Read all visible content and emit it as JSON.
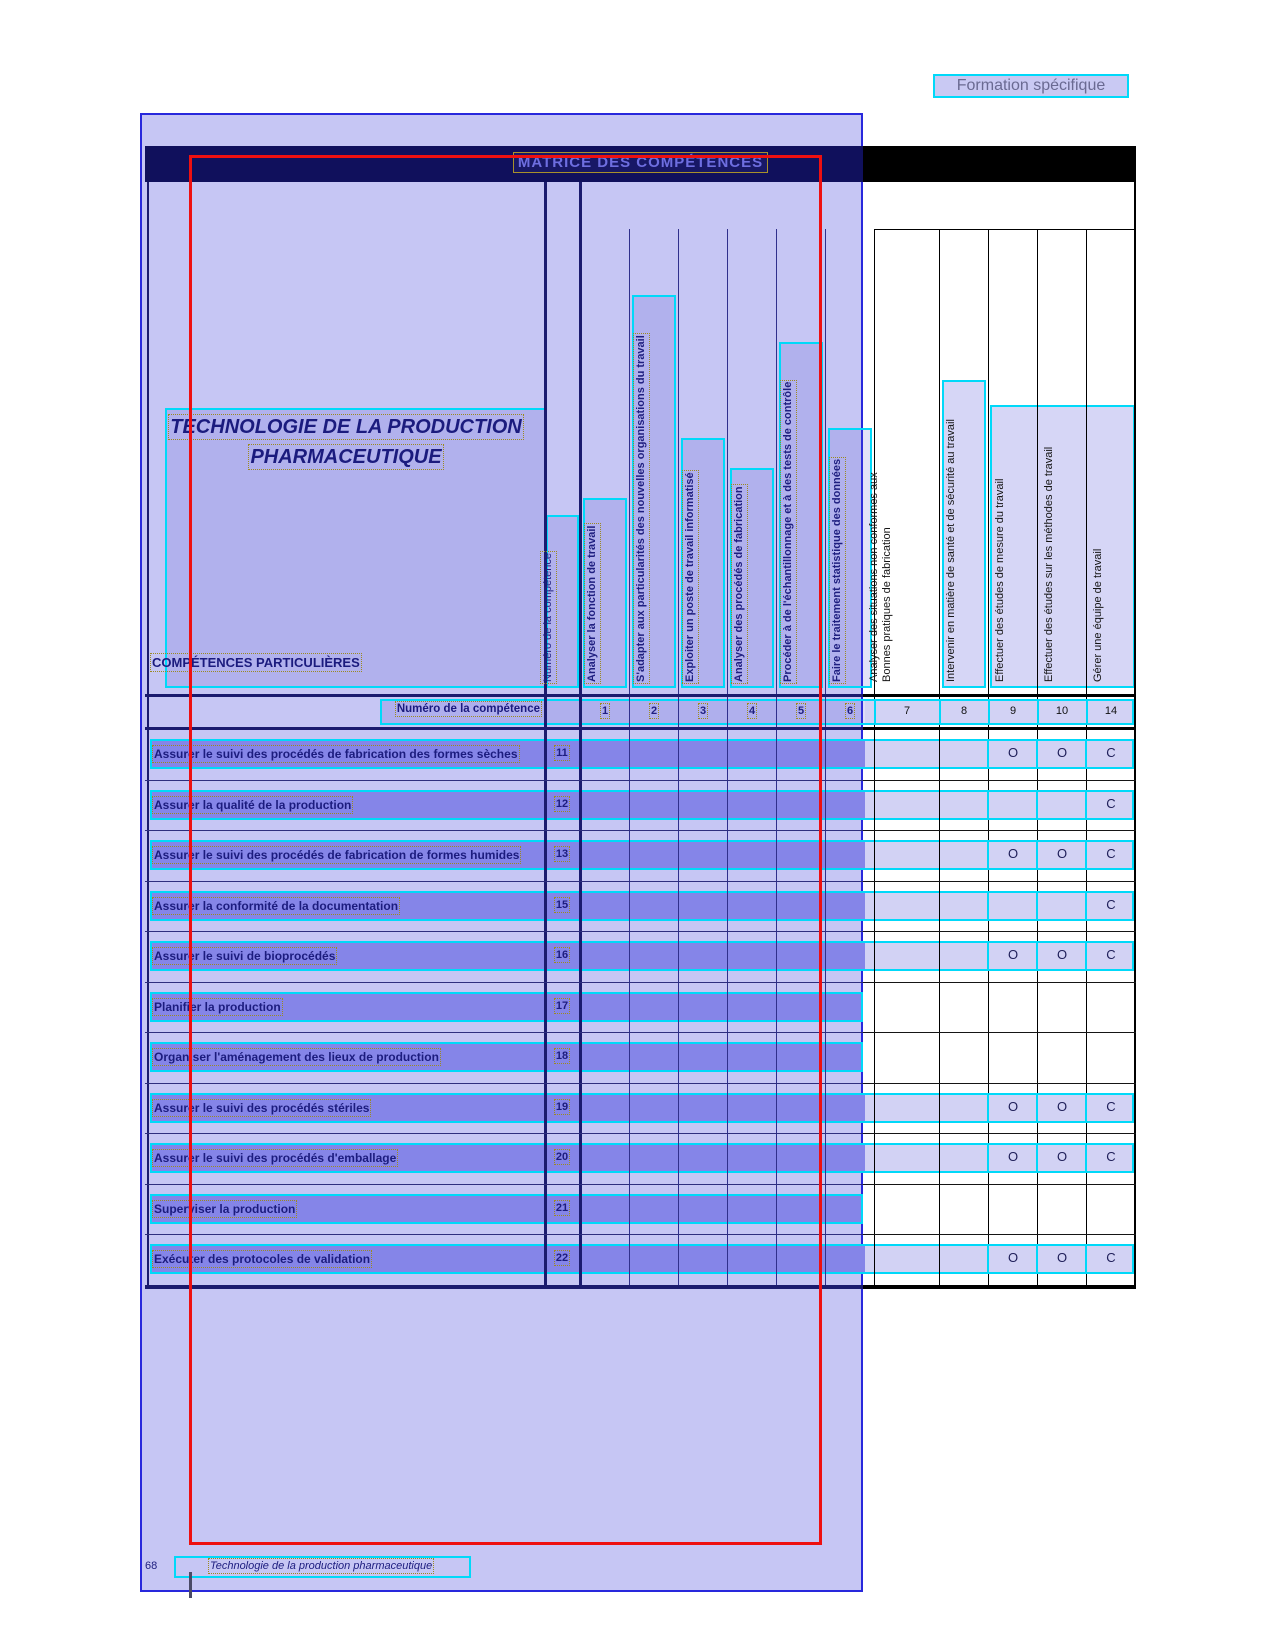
{
  "page": {
    "corner_label": "Formation spécifique",
    "matrix_title": "MATRICE DES COMPÉTENCES",
    "program_title_line1": "TECHNOLOGIE DE LA PRODUCTION",
    "program_title_line2": "PHARMACEUTIQUE",
    "left_column_header": "COMPÉTENCES PARTICULIÈRES",
    "number_row_label": "Numéro de la compétence"
  },
  "columns": [
    {
      "num": "1",
      "label": "Analyser la fonction de travail"
    },
    {
      "num": "2",
      "label": "S'adapter aux particularités des nouvelles organisations du travail"
    },
    {
      "num": "3",
      "label": "Exploiter un poste de travail informatisé"
    },
    {
      "num": "4",
      "label": "Analyser des procédés de fabrication"
    },
    {
      "num": "5",
      "label": "Procéder à de l'échantillonnage et à des tests de contrôle"
    },
    {
      "num": "6",
      "label": "Faire le traitement statistique des données"
    },
    {
      "num": "7",
      "label": "Analyser des situations non conformes aux\nBonnes pratiques de fabrication"
    },
    {
      "num": "8",
      "label": "Intervenir en matière de santé et de sécurité au travail"
    },
    {
      "num": "9",
      "label": "Effectuer des études de mesure du travail"
    },
    {
      "num": "10",
      "label": "Effectuer des études sur les méthodes de travail"
    },
    {
      "num": "14",
      "label": "Gérer une équipe de travail"
    }
  ],
  "rows": [
    {
      "num": "11",
      "label": "Assurer le suivi des procédés de fabrication des formes sèches",
      "highlight": "full",
      "marks": {
        "9": "O",
        "10": "O",
        "14": "C"
      }
    },
    {
      "num": "12",
      "label": "Assurer la qualité de la production",
      "highlight": "full",
      "marks": {
        "14": "C"
      }
    },
    {
      "num": "13",
      "label": "Assurer le suivi des procédés de fabrication de formes humides",
      "highlight": "full",
      "marks": {
        "9": "O",
        "10": "O",
        "14": "C"
      }
    },
    {
      "num": "15",
      "label": "Assurer la conformité de la documentation",
      "highlight": "full",
      "marks": {
        "14": "C"
      }
    },
    {
      "num": "16",
      "label": "Assurer le suivi de bioprocédés",
      "highlight": "full",
      "marks": {
        "9": "O",
        "10": "O",
        "14": "C"
      }
    },
    {
      "num": "17",
      "label": "Planifier la production",
      "highlight": "left",
      "marks": {}
    },
    {
      "num": "18",
      "label": "Organiser l'aménagement des lieux de production",
      "highlight": "left",
      "marks": {}
    },
    {
      "num": "19",
      "label": "Assurer le suivi des procédés stériles",
      "highlight": "full",
      "marks": {
        "9": "O",
        "10": "O",
        "14": "C"
      }
    },
    {
      "num": "20",
      "label": "Assurer le suivi des procédés d'emballage",
      "highlight": "full",
      "marks": {
        "9": "O",
        "10": "O",
        "14": "C"
      }
    },
    {
      "num": "21",
      "label": "Superviser la production",
      "highlight": "left",
      "marks": {}
    },
    {
      "num": "22",
      "label": "Exécuter des protocoles de validation",
      "highlight": "full",
      "marks": {
        "9": "O",
        "10": "O",
        "14": "C"
      }
    }
  ],
  "footer": {
    "page_number": "68",
    "text": "Technologie de la production pharmaceutique"
  },
  "colors": {
    "selection_border_blue": "#2828dc",
    "selection_fill": "#c6c6f4",
    "highlight_cyan": "#00d9f9",
    "annotation_red": "#ee1010",
    "ocr_box_yellow": "#9c8a20",
    "text_navy": "#1c1c7e",
    "band_inside_selection": "#8585e8",
    "band_outside_selection": "#d2d2f4"
  }
}
